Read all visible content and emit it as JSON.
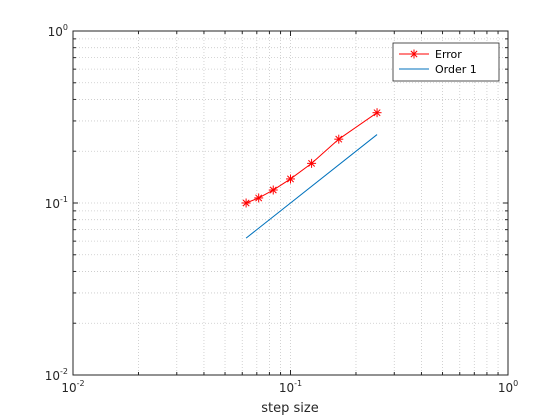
{
  "chart_data": {
    "type": "line",
    "title": "",
    "xlabel": "step size",
    "ylabel": "",
    "xscale": "log",
    "yscale": "log",
    "xlim": [
      0.01,
      1
    ],
    "ylim": [
      0.01,
      1
    ],
    "grid": true,
    "minor_grid": true,
    "legend_position": "top-right",
    "x_ticks": [
      {
        "base": "10",
        "exp": "-2",
        "value": 0.01
      },
      {
        "base": "10",
        "exp": "-1",
        "value": 0.1
      },
      {
        "base": "10",
        "exp": "0",
        "value": 1
      }
    ],
    "y_ticks": [
      {
        "base": "10",
        "exp": "-2",
        "value": 0.01
      },
      {
        "base": "10",
        "exp": "-1",
        "value": 0.1
      },
      {
        "base": "10",
        "exp": "0",
        "value": 1
      }
    ],
    "series": [
      {
        "name": "Error",
        "color": "#ff0000",
        "marker": "asterisk",
        "x": [
          0.0625,
          0.0714,
          0.0833,
          0.1,
          0.125,
          0.1667,
          0.25
        ],
        "y": [
          0.1,
          0.107,
          0.119,
          0.138,
          0.17,
          0.235,
          0.335
        ]
      },
      {
        "name": "Order 1",
        "color": "#0072bd",
        "marker": "none",
        "x": [
          0.0625,
          0.25
        ],
        "y": [
          0.0625,
          0.25
        ]
      }
    ]
  }
}
